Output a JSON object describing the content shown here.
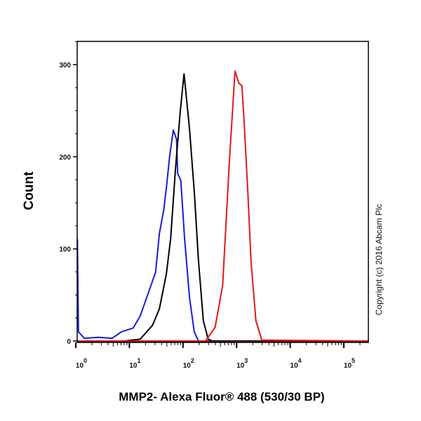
{
  "chart_data": {
    "type": "line",
    "title": "",
    "xlabel": "MMP2- Alexa Fluor® 488 (530/30 BP)",
    "ylabel": "Count",
    "x_scale": "log10",
    "xlim_log10": [
      -0.03,
      5.46
    ],
    "ylim": [
      0,
      330
    ],
    "x_ticks": [
      {
        "exp": 0,
        "label": "10",
        "sup": "0"
      },
      {
        "exp": 1,
        "label": "10",
        "sup": "1"
      },
      {
        "exp": 2,
        "label": "10",
        "sup": "2"
      },
      {
        "exp": 3,
        "label": "10",
        "sup": "3"
      },
      {
        "exp": 4,
        "label": "10",
        "sup": "4"
      },
      {
        "exp": 5,
        "label": "10",
        "sup": "5"
      }
    ],
    "y_ticks": [
      0,
      100,
      200,
      300
    ],
    "y_tick_labels": [
      "0",
      "100",
      "200",
      "300"
    ],
    "grid": false,
    "annotation": "Copyright (c) 2016 Abcam Plc",
    "series": [
      {
        "name": "blue",
        "color": "#1a1adc",
        "x_log10": [
          0.0,
          0.03,
          0.05,
          0.16,
          0.42,
          0.68,
          0.85,
          1.07,
          1.2,
          1.31,
          1.43,
          1.49,
          1.56,
          1.64,
          1.69,
          1.75,
          1.82,
          1.88,
          1.9,
          1.96,
          2.03,
          2.12,
          2.21,
          2.29,
          5.46
        ],
        "values": [
          110,
          110,
          10,
          3,
          4,
          3,
          10,
          14,
          27,
          45,
          65,
          75,
          117,
          142,
          166,
          200,
          229,
          219,
          182,
          174,
          111,
          48,
          10,
          0,
          0
        ]
      },
      {
        "name": "black",
        "color": "#000000",
        "x_log10": [
          -0.03,
          0.9,
          1.2,
          1.43,
          1.56,
          1.69,
          1.77,
          1.86,
          1.95,
          2.02,
          2.12,
          2.21,
          2.29,
          2.38,
          2.47,
          2.55,
          5.46
        ],
        "values": [
          0,
          0,
          2,
          17,
          35,
          73,
          111,
          187,
          250,
          290,
          231,
          163,
          86,
          22,
          2,
          0,
          0
        ]
      },
      {
        "name": "red",
        "color": "#e01818",
        "x_log10": [
          -0.03,
          2.42,
          2.6,
          2.74,
          2.81,
          2.87,
          2.93,
          2.97,
          3.04,
          3.1,
          3.14,
          3.21,
          3.27,
          3.36,
          3.47,
          5.46
        ],
        "values": [
          0,
          0,
          15,
          60,
          136,
          200,
          256,
          293,
          280,
          277,
          238,
          162,
          86,
          22,
          1,
          0
        ]
      }
    ]
  }
}
